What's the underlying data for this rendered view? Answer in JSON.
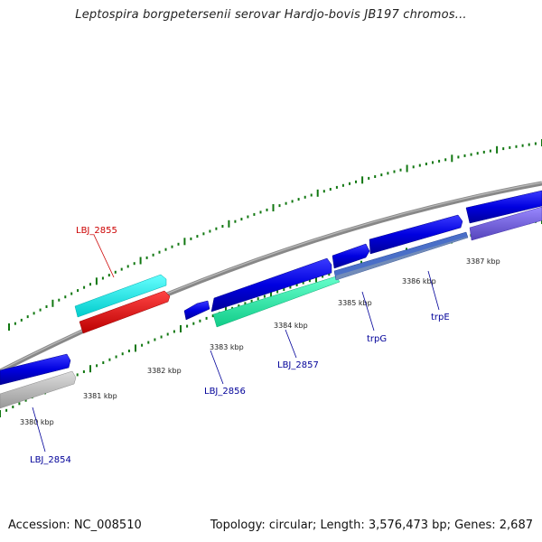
{
  "title": "Leptospira borgpetersenii serovar Hardjo-bovis JB197 chromos...",
  "accession": "Accession: NC_008510",
  "summary": "Topology: circular; Length: 3,576,473 bp; Genes: 2,687",
  "ruler_labels": [
    "3380 kbp",
    "3381 kbp",
    "3382 kbp",
    "3383 kbp",
    "3384 kbp",
    "3385 kbp",
    "3386 kbp",
    "3387 kbp"
  ],
  "genes": [
    {
      "name": "LBJ_2855",
      "color": "#cc0000"
    },
    {
      "name": "LBJ_2854",
      "color": "#000099"
    },
    {
      "name": "LBJ_2856",
      "color": "#000099"
    },
    {
      "name": "LBJ_2857",
      "color": "#000099"
    },
    {
      "name": "trpG",
      "color": "#000099"
    },
    {
      "name": "trpE",
      "color": "#000099"
    }
  ],
  "colors": {
    "backbone": "#8a8a8a",
    "cds": "#0000dd",
    "trna": "#00e5e5",
    "rrna": "#ee0000",
    "pseudo": "#b8b8b8",
    "blast": "#33e8a0",
    "domain": "#6655cc",
    "tick": "#117711"
  }
}
